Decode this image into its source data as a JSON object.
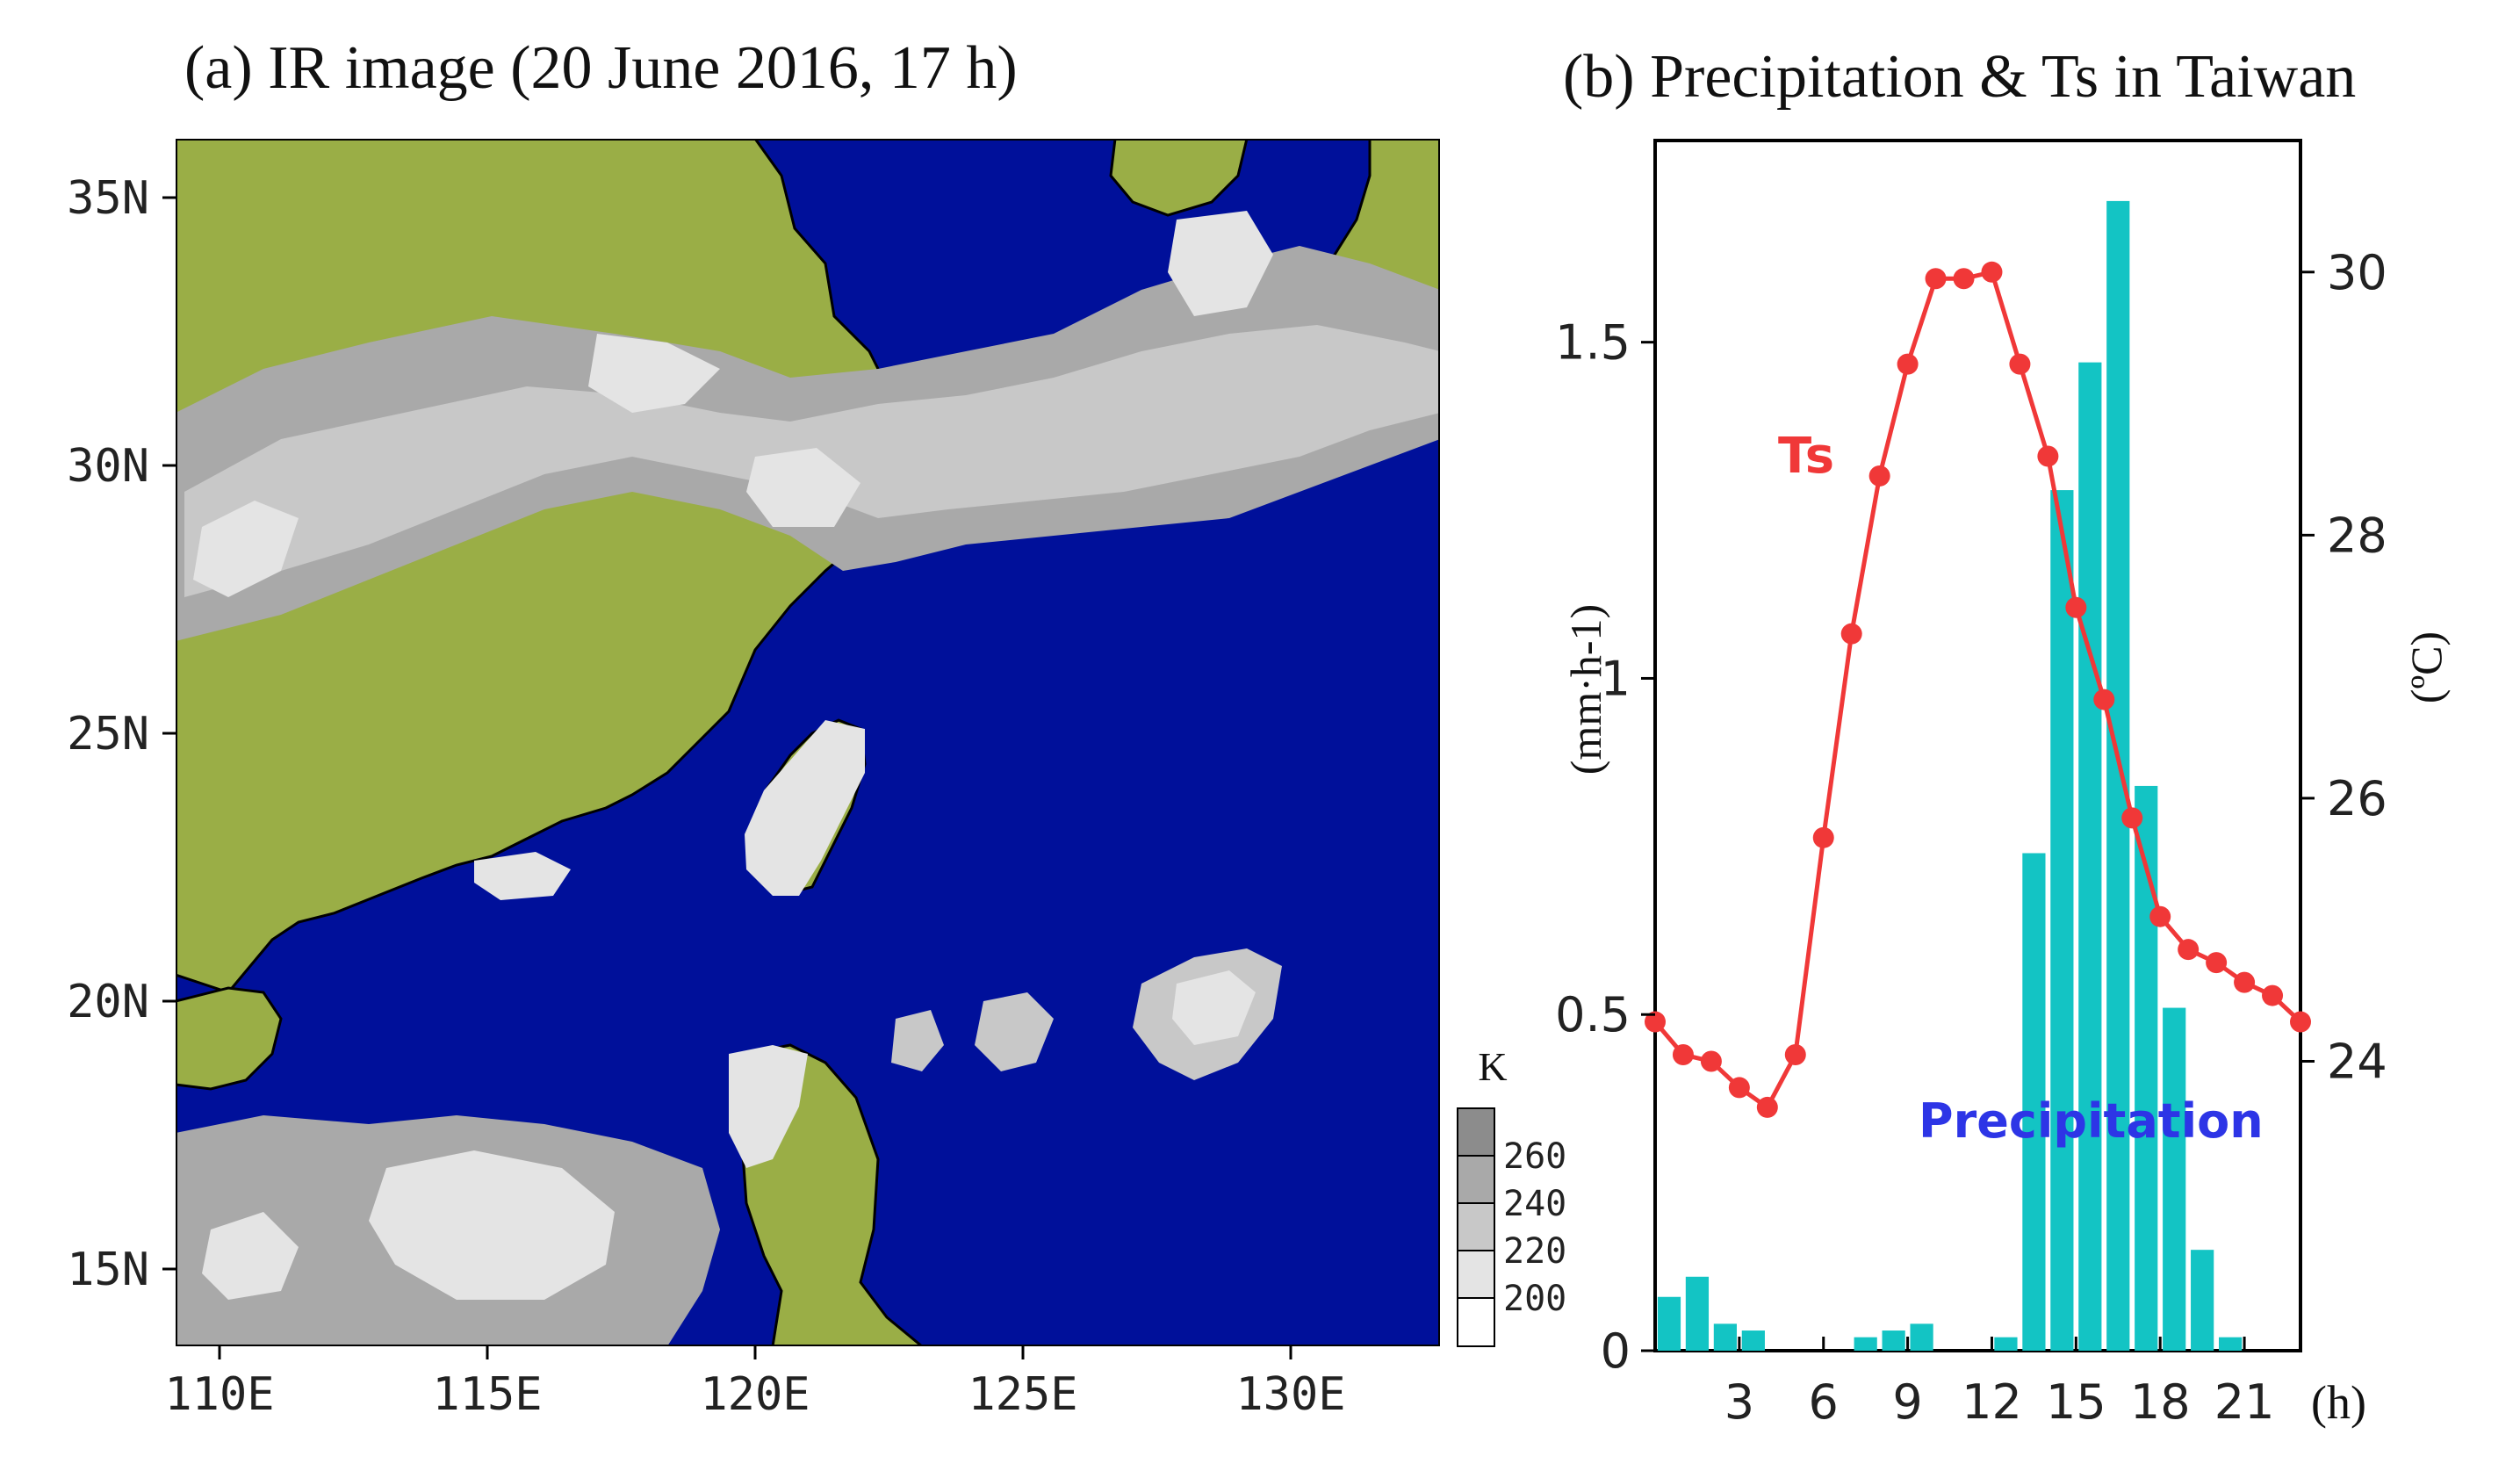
{
  "chart_data": [
    {
      "type": "heatmap",
      "panel": "a",
      "title": "(a) IR image (20 June 2016, 17 h)",
      "xticks": [
        "110E",
        "115E",
        "120E",
        "125E",
        "130E"
      ],
      "yticks": [
        "35N",
        "30N",
        "25N",
        "20N",
        "15N"
      ],
      "xlim": [
        108.9,
        133.0
      ],
      "ylim": [
        13.5,
        36.0
      ],
      "colorbar": {
        "unit": "K",
        "levels": [
          "260",
          "240",
          "220",
          "200"
        ],
        "colors": [
          "#8c8c8c",
          "#a9a9a9",
          "#c8c8c8",
          "#e4e4e4",
          "#ffffff"
        ]
      },
      "colors": {
        "ocean": "#00109a",
        "land": "#9aae46",
        "cloud_dark": "#a9a9a9",
        "cloud_mid": "#c8c8c8",
        "cloud_light": "#e4e4e4",
        "coast": "#000000"
      }
    },
    {
      "type": "bar",
      "panel": "b",
      "title": "(b) Precipitation & Ts in Taiwan",
      "xlabel": "(h)",
      "ylabel": "(mm·h-1)",
      "y2label": "(ºC)",
      "xticks": [
        3,
        6,
        9,
        12,
        15,
        18,
        21
      ],
      "yticks": [
        "0",
        "0.5",
        "1",
        "1.5"
      ],
      "y2ticks": [
        24,
        26,
        28,
        30
      ],
      "xlim": [
        0,
        23
      ],
      "ylim": [
        0,
        1.8
      ],
      "y2lim": [
        21.8,
        31.0
      ],
      "series": [
        {
          "name": "Precipitation",
          "type": "bar",
          "color": "#13c4c4",
          "label_color": "#2d35e6",
          "x": [
            0,
            1,
            2,
            3,
            4,
            5,
            6,
            7,
            8,
            9,
            10,
            11,
            12,
            13,
            14,
            15,
            16,
            17,
            18,
            19,
            20,
            21,
            22,
            23
          ],
          "values": [
            0.08,
            0.11,
            0.04,
            0.03,
            0,
            0,
            0,
            0.02,
            0.03,
            0.04,
            0,
            0,
            0.02,
            0.74,
            1.28,
            1.47,
            1.71,
            0.84,
            0.51,
            0.15,
            0.02,
            0,
            0,
            0
          ]
        },
        {
          "name": "Ts",
          "type": "line",
          "axis": "right",
          "color": "#f03838",
          "x": [
            0,
            1,
            2,
            3,
            4,
            5,
            6,
            7,
            8,
            9,
            10,
            11,
            12,
            13,
            14,
            15,
            16,
            17,
            18,
            19,
            20,
            21,
            22,
            23
          ],
          "values": [
            24.3,
            24.05,
            24.0,
            23.8,
            23.65,
            24.05,
            25.7,
            27.25,
            28.45,
            29.3,
            29.95,
            29.95,
            30.0,
            29.3,
            28.6,
            27.45,
            26.75,
            25.85,
            25.1,
            24.85,
            24.75,
            24.6,
            24.5,
            24.3
          ]
        }
      ]
    }
  ]
}
